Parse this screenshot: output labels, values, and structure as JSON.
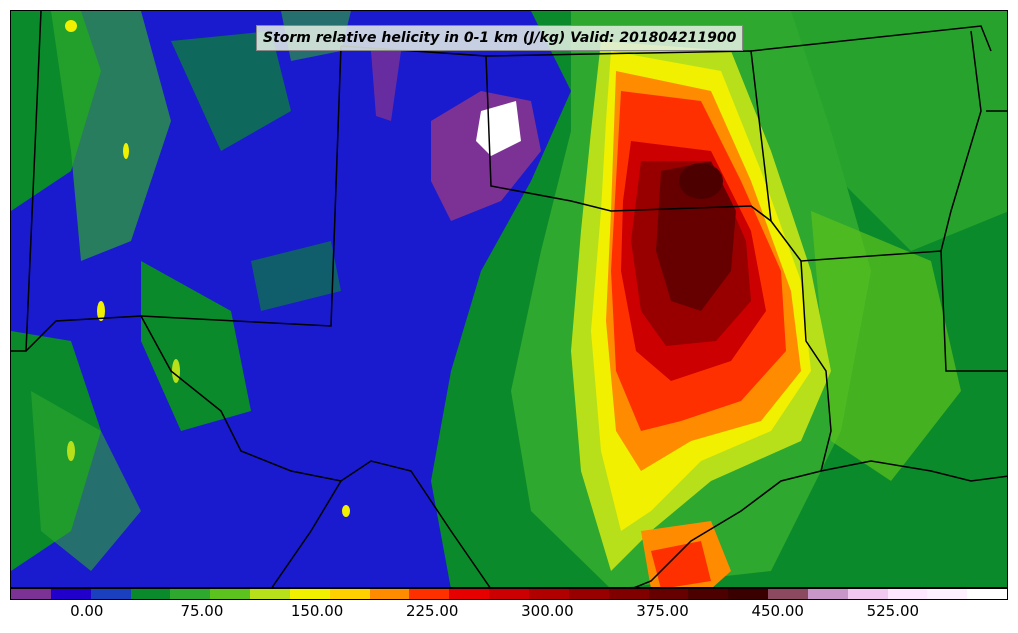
{
  "title": "Storm relative helicity in 0-1 km (J/kg) Valid: 201804211900",
  "colorbar": {
    "min": -50,
    "max": 600,
    "colors": [
      "#7b3294",
      "#2200cc",
      "#1a3fbf",
      "#0a8a2a",
      "#2ea82e",
      "#5cc21e",
      "#b8e01a",
      "#f0f000",
      "#ffd000",
      "#ff8c00",
      "#ff3000",
      "#e60000",
      "#cc0000",
      "#b00000",
      "#980000",
      "#800000",
      "#660000",
      "#4d0000",
      "#3a0000",
      "#8b4a60",
      "#c896c8",
      "#f0c8f0",
      "#ffe6ff",
      "#fff0ff",
      "#ffffff"
    ],
    "tick_values": [
      0,
      75,
      150,
      225,
      300,
      375,
      450,
      525
    ],
    "tick_labels": [
      "0.00",
      "75.00",
      "150.00",
      "225.00",
      "300.00",
      "375.00",
      "450.00",
      "525.00"
    ]
  },
  "regions": {
    "background": "#1a1acf",
    "low_helicity": "#7b3294",
    "max_helicity": "#ffffff",
    "moderate": "#2ea82e",
    "high": "#ff3000",
    "extreme": "#660000"
  }
}
